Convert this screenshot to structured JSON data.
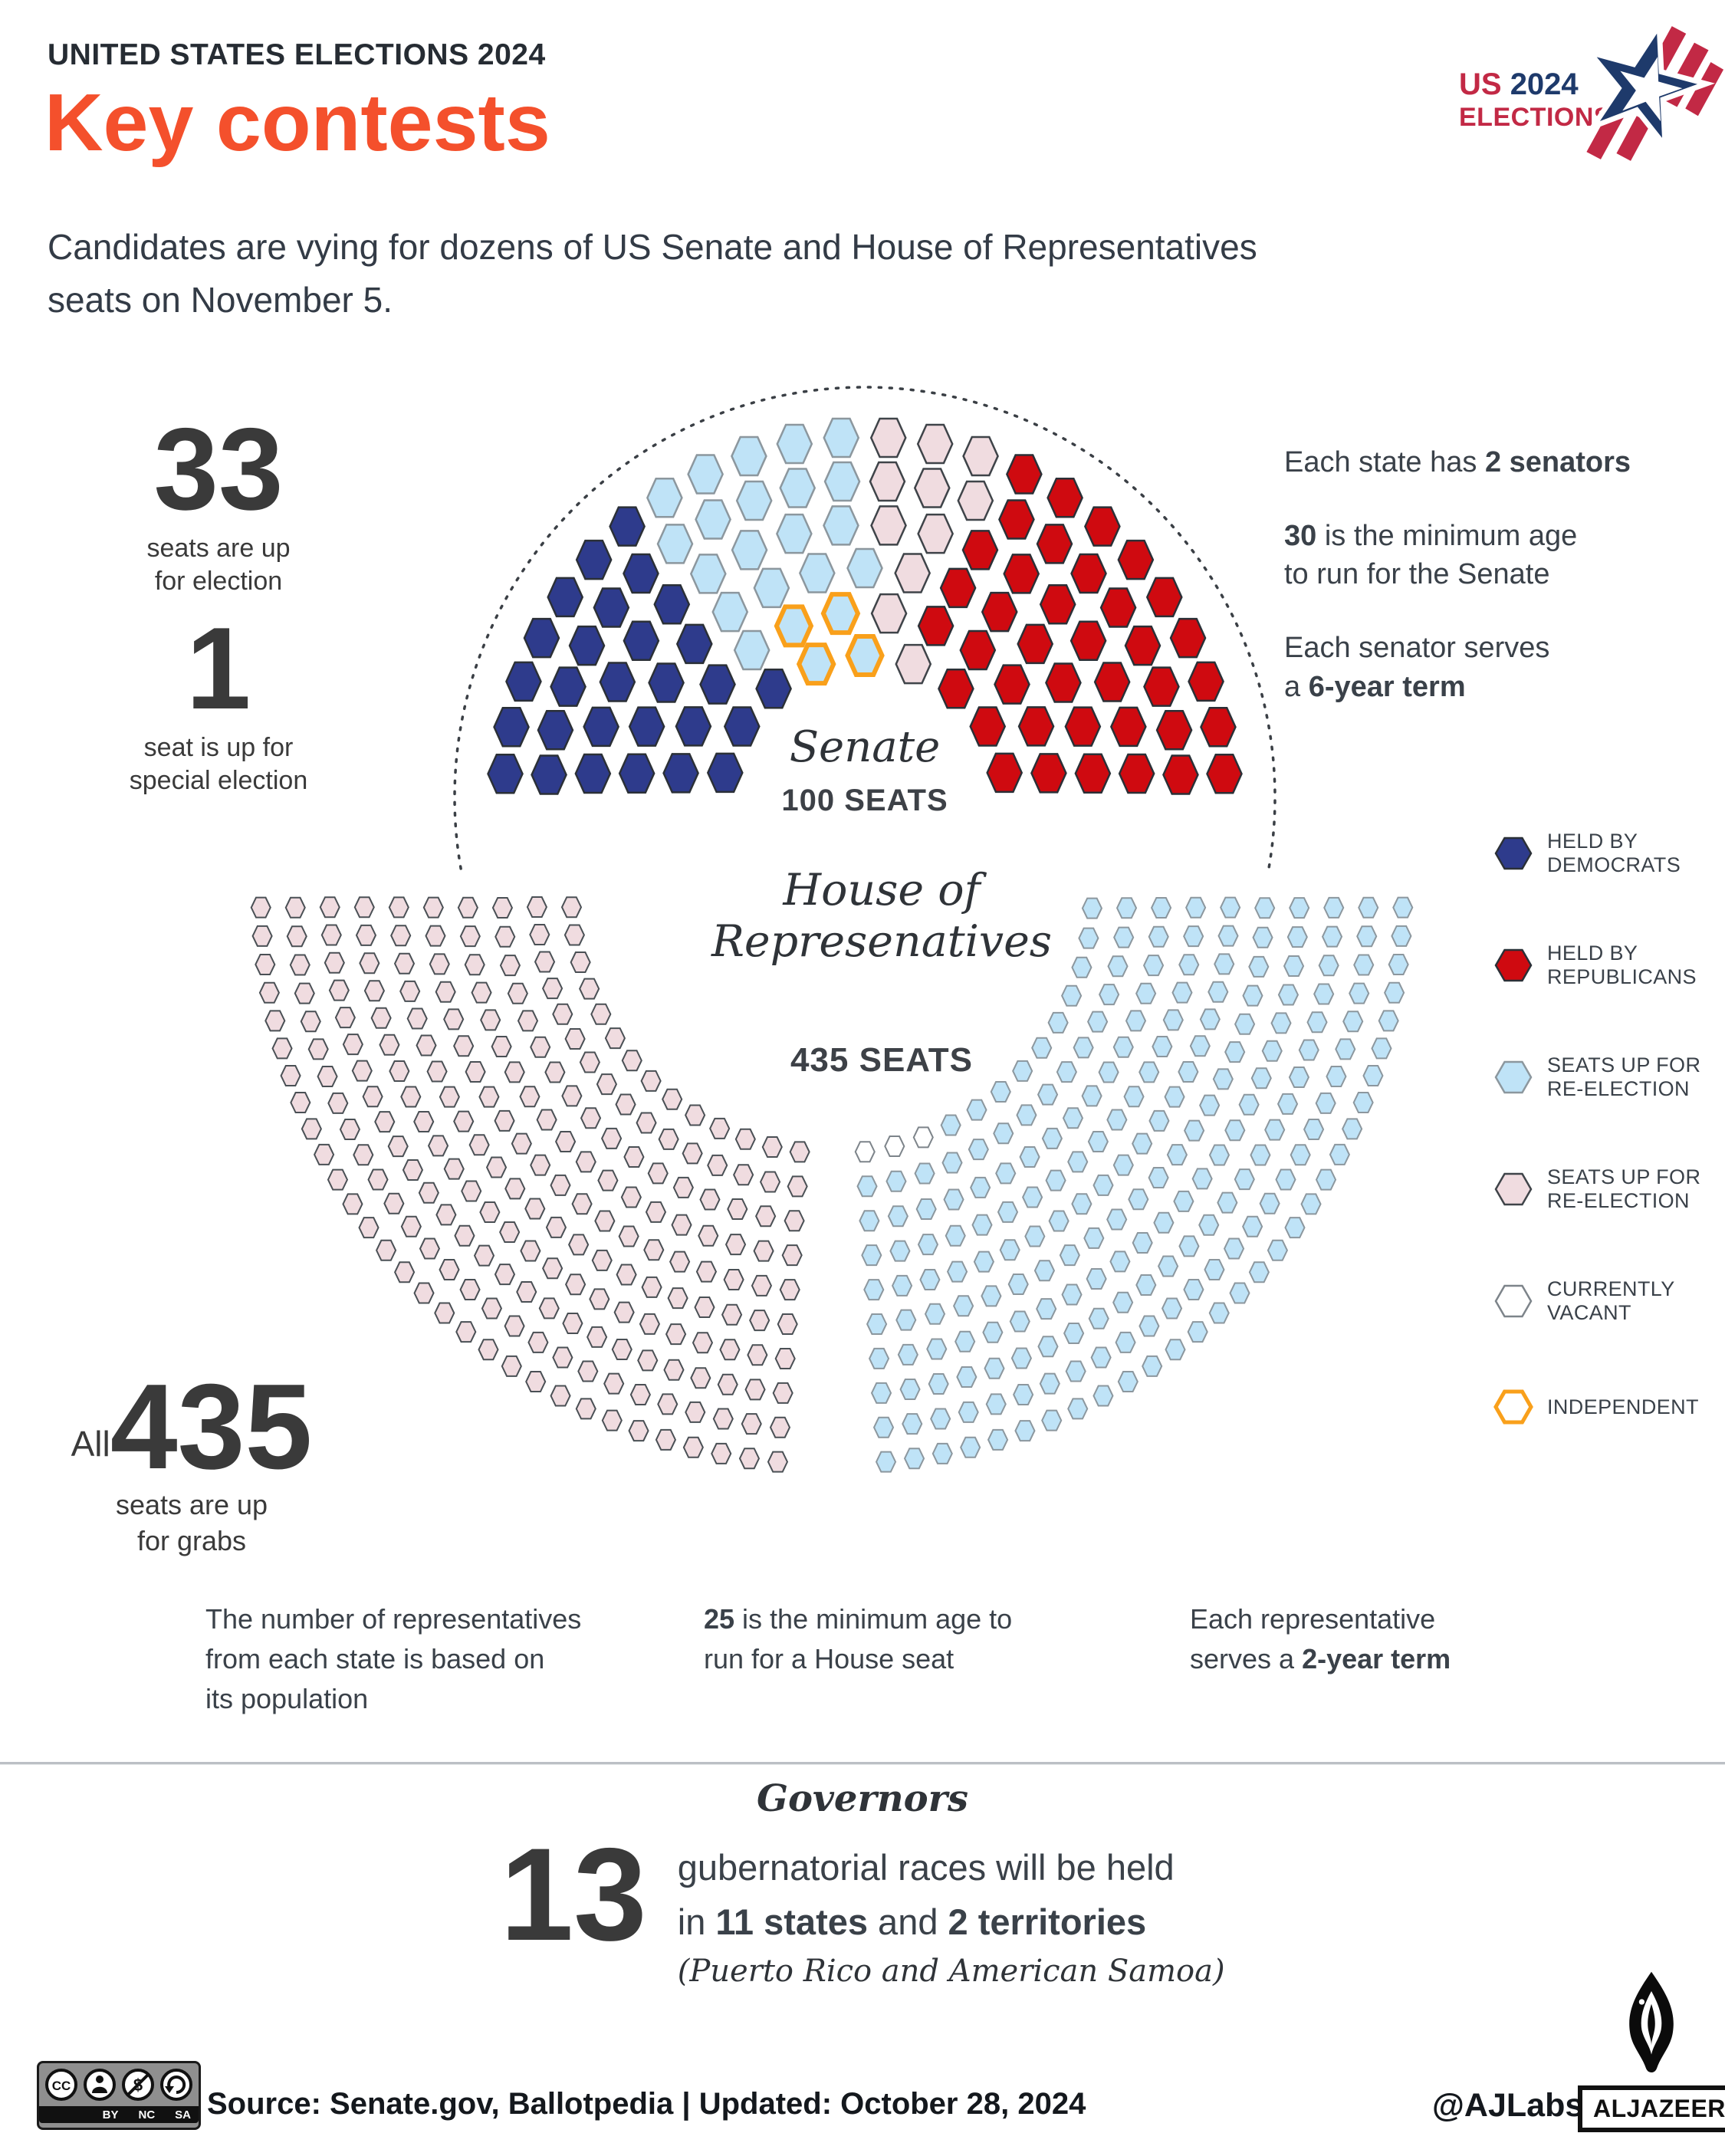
{
  "header": {
    "kicker": "UNITED STATES ELECTIONS 2024",
    "title": "Key contests",
    "subtitle": "Candidates are vying for dozens of US Senate and House of Representatives\nseats on November 5.",
    "accent_color": "#f4502c"
  },
  "logo": {
    "line1_us": "US ",
    "line1_year": "2024",
    "line2": "ELECTIONS",
    "red": "#c22945",
    "navy": "#1e3a6b"
  },
  "senate_stats": [
    {
      "value": "33",
      "label": "seats are up\nfor election"
    },
    {
      "value": "1",
      "label": "seat is up for\nspecial election"
    }
  ],
  "senate_facts": [
    {
      "parts": [
        {
          "t": "Each state has "
        },
        {
          "t": "2 senators",
          "b": true
        }
      ]
    },
    {
      "parts": [
        {
          "t": "30",
          "b": true
        },
        {
          "t": " is the minimum age\nto run for the Senate"
        }
      ]
    },
    {
      "parts": [
        {
          "t": "Each senator serves\na "
        },
        {
          "t": "6-year term",
          "b": true
        }
      ]
    }
  ],
  "house_stat": {
    "prefix": "All",
    "value": "435",
    "label": "seats are up\nfor grabs"
  },
  "house_facts": [
    {
      "parts": [
        {
          "t": "The number of representatives\nfrom each state is based on\nits population"
        }
      ]
    },
    {
      "parts": [
        {
          "t": "25",
          "b": true
        },
        {
          "t": " is the minimum age to\nrun for a House seat"
        }
      ]
    },
    {
      "parts": [
        {
          "t": "Each representative\nserves a "
        },
        {
          "t": "2-year term",
          "b": true
        }
      ]
    }
  ],
  "legend": {
    "items": [
      {
        "label": "HELD BY\nDEMOCRATS",
        "fill": "#2e3b8c",
        "border": "#2b3037",
        "border_width": 2.5
      },
      {
        "label": "HELD BY\nREPUBLICANS",
        "fill": "#cf0a10",
        "border": "#2b3037",
        "border_width": 2.5
      },
      {
        "label": "SEATS UP FOR\nRE-ELECTION",
        "fill": "#bfe3f7",
        "border": "#8c979e",
        "border_width": 2.5
      },
      {
        "label": "SEATS UP FOR\nRE-ELECTION",
        "fill": "#f0dce0",
        "border": "#3f4449",
        "border_width": 2.5
      },
      {
        "label": "CURRENTLY\nVACANT",
        "fill": "#ffffff",
        "border": "#7d848a",
        "border_width": 2.5
      },
      {
        "label": "INDEPENDENT",
        "fill": "#ffffff",
        "border": "#f9a01b",
        "border_width": 5
      }
    ]
  },
  "chart_data": [
    {
      "type": "parliament-hemicycle",
      "chamber": "senate",
      "title": "Senate",
      "subtitle": "100 SEATS",
      "total_seats": 100,
      "legend_position": "right",
      "segments": [
        {
          "name": "held_by_democrats",
          "label": "Held by Democrats",
          "seats": 28,
          "color": "#2e3b8c",
          "border": "#2b3037"
        },
        {
          "name": "dem_seats_up_for_reelection",
          "label": "Seats up for re-election (Democratic-held)",
          "seats": 19,
          "color": "#bfe3f7",
          "border": "#8c979e"
        },
        {
          "name": "independent_up_for_reelection",
          "label": "Independent",
          "seats": 4,
          "color": "#bfe3f7",
          "border": "#f9a01b"
        },
        {
          "name": "rep_seats_up_for_reelection",
          "label": "Seats up for re-election (Republican-held)",
          "seats": 11,
          "color": "#f0dce0",
          "border": "#3f4449"
        },
        {
          "name": "held_by_republicans",
          "label": "Held by Republicans",
          "seats": 38,
          "color": "#cf0a10",
          "border": "#2b3037"
        }
      ]
    },
    {
      "type": "parliament-hemicycle-inverted",
      "chamber": "house",
      "title": "House of\nRepresenatives",
      "subtitle": "435 SEATS",
      "total_seats": 435,
      "segments": [
        {
          "name": "rep_seats_up_for_reelection",
          "label": "Seats up for re-election (Republican-held)",
          "seats": 220,
          "color": "#f0dce0",
          "border": "#4a5055"
        },
        {
          "name": "currently_vacant",
          "label": "Currently vacant",
          "seats": 3,
          "color": "#ffffff",
          "border": "#7d848a"
        },
        {
          "name": "dem_seats_up_for_reelection",
          "label": "Seats up for re-election (Democratic-held)",
          "seats": 212,
          "color": "#bfe3f7",
          "border": "#8c979e"
        }
      ]
    }
  ],
  "governors": {
    "heading": "Governors",
    "value": "13",
    "line1": "gubernatorial races will be held",
    "line2_parts": [
      {
        "t": "in "
      },
      {
        "t": "11 states",
        "b": true
      },
      {
        "t": " and "
      },
      {
        "t": "2 territories",
        "b": true
      }
    ],
    "line3": "(Puerto Rico and American Samoa)"
  },
  "footer": {
    "source": "Source: Senate.gov, Ballotpedia |  Updated: October 28, 2024",
    "credit": "@AJLabs",
    "brand": "ALJAZEERA",
    "cc_labels": [
      "BY",
      "NC",
      "SA"
    ]
  }
}
